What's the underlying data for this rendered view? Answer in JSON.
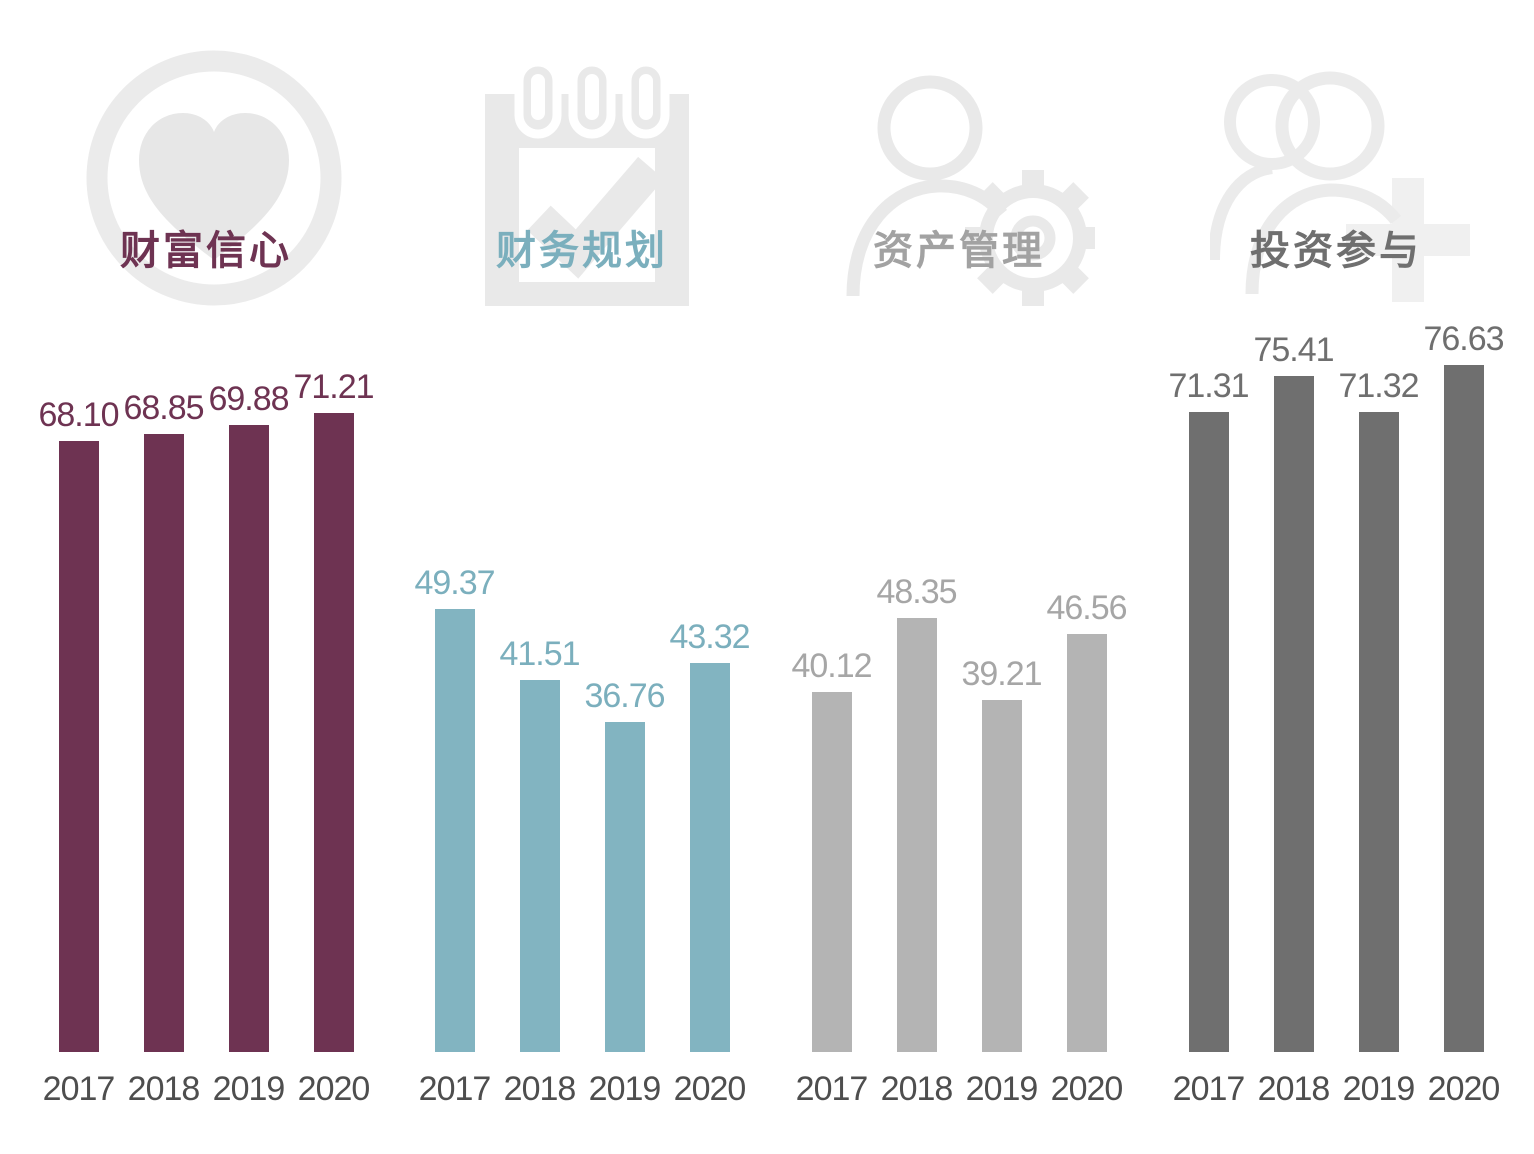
{
  "page": {
    "background": "#FFFFFF"
  },
  "chart_data": {
    "type": "bar",
    "categories": [
      "2017",
      "2018",
      "2019",
      "2020"
    ],
    "ylim": [
      0,
      80
    ],
    "grid": false,
    "legend": false,
    "value_labels_shown": true,
    "axis": {
      "tick_color": "#4E4E4E",
      "icon_color": "#E9E9E9"
    },
    "groups": [
      {
        "title": "财富信心",
        "icon": "heart-circle-icon",
        "bar_color": "#6E3352",
        "title_color": "#6E3352",
        "label_color": "#6E3352",
        "values": [
          68.1,
          68.85,
          69.88,
          71.21
        ],
        "labels": [
          "68.10",
          "68.85",
          "69.88",
          "71.21"
        ]
      },
      {
        "title": "财务规划",
        "icon": "calendar-check-icon",
        "bar_color": "#82B4C1",
        "title_color": "#7BAFBD",
        "label_color": "#7BAFBD",
        "values": [
          49.37,
          41.51,
          36.76,
          43.32
        ],
        "labels": [
          "49.37",
          "41.51",
          "36.76",
          "43.32"
        ]
      },
      {
        "title": "资产管理",
        "icon": "person-gear-icon",
        "bar_color": "#B4B4B4",
        "title_color": "#A2A2A2",
        "label_color": "#A6A6A6",
        "values": [
          40.12,
          48.35,
          39.21,
          46.56
        ],
        "labels": [
          "40.12",
          "48.35",
          "39.21",
          "46.56"
        ]
      },
      {
        "title": "投资参与",
        "icon": "people-plus-icon",
        "bar_color": "#6F6F6F",
        "title_color": "#6F6F6F",
        "label_color": "#6F6F6F",
        "values": [
          71.31,
          75.41,
          71.32,
          76.63
        ],
        "labels": [
          "71.31",
          "75.41",
          "71.32",
          "76.63"
        ]
      }
    ]
  }
}
